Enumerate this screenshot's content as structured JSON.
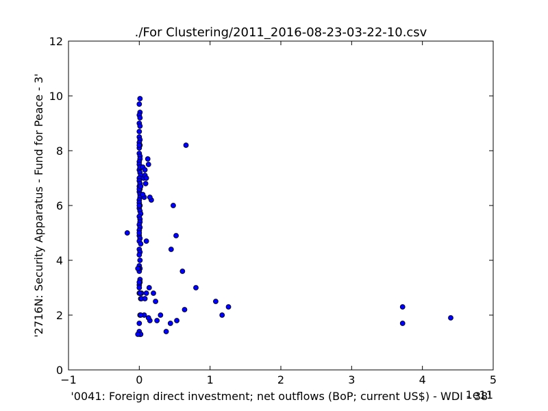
{
  "chart_data": {
    "type": "scatter",
    "title": "./For Clustering/2011_2016-08-23-03-22-10.csv",
    "xlabel": "'0041: Foreign direct investment; net outflows  (BoP; current US$) - WDI - 38'",
    "ylabel": "'2716N: Security Apparatus - Fund for Peace - 3'",
    "x_offset_label": "1e11",
    "xlim": [
      -1,
      5
    ],
    "ylim": [
      0,
      12
    ],
    "xticks": [
      -1,
      0,
      1,
      2,
      3,
      4,
      5
    ],
    "xtick_labels": [
      "−1",
      "0",
      "1",
      "2",
      "3",
      "4",
      "5"
    ],
    "yticks": [
      0,
      2,
      4,
      6,
      8,
      10,
      12
    ],
    "ytick_labels": [
      "0",
      "2",
      "4",
      "6",
      "8",
      "10",
      "12"
    ],
    "grid": false,
    "marker_color": "#0000ff",
    "marker_edge_color": "#000000",
    "series": [
      {
        "x": [
          0.01,
          0.0,
          0.01,
          0.0,
          0.01,
          0.0,
          0.01,
          0.0,
          0.0,
          0.01,
          0.0,
          0.01,
          0.0,
          0.0,
          0.01,
          0.01,
          0.0,
          0.0,
          0.01,
          0.0,
          0.01,
          0.02,
          0.0,
          0.0,
          0.01,
          0.0,
          0.01,
          0.0,
          0.01,
          0.01,
          0.0,
          0.0,
          0.01,
          0.0,
          0.01,
          0.02,
          0.0,
          0.01,
          0.01,
          0.0,
          0.01,
          0.0,
          0.0,
          0.01,
          0.0,
          0.02,
          0.0,
          0.01,
          0.0,
          0.01,
          0.0,
          0.01,
          0.0,
          0.01,
          0.01,
          0.0,
          0.0,
          0.02,
          0.01,
          0.0,
          0.01,
          0.0,
          0.0,
          0.01,
          0.02,
          -0.02,
          0.0,
          0.01,
          -0.01,
          0.0,
          0.01,
          0.02,
          0.0,
          0.0,
          0.03,
          0.05,
          0.08,
          0.12,
          0.13,
          0.06,
          0.08,
          0.1,
          0.09,
          0.07,
          0.05,
          0.17,
          0.15,
          0.1,
          -0.17,
          0.48,
          0.52,
          0.45,
          0.61,
          0.66,
          0.14,
          0.2,
          0.1,
          0.03,
          0.08,
          0.23,
          0.64,
          1.08,
          1.26,
          1.17,
          0.8,
          0.15,
          0.13,
          0.3,
          0.25,
          0.53,
          0.44,
          0.38,
          0.07,
          0.02,
          0.0,
          -0.02,
          0.01,
          3.72,
          3.72,
          4.4
        ],
        "y": [
          9.9,
          9.7,
          9.4,
          9.3,
          9.2,
          9.0,
          8.9,
          8.7,
          8.5,
          8.4,
          8.3,
          8.2,
          8.1,
          7.9,
          7.8,
          7.7,
          7.6,
          7.5,
          7.4,
          7.3,
          7.2,
          7.1,
          7.0,
          6.9,
          6.8,
          6.7,
          6.6,
          6.5,
          6.4,
          6.3,
          6.2,
          6.1,
          6.0,
          5.9,
          5.8,
          5.7,
          5.6,
          5.5,
          5.4,
          5.3,
          5.2,
          5.1,
          4.9,
          4.8,
          4.7,
          4.6,
          4.4,
          4.3,
          4.2,
          4.0,
          3.8,
          3.7,
          3.6,
          3.3,
          3.2,
          3.1,
          3.0,
          2.6,
          2.8,
          2.8,
          2.0,
          1.7,
          1.4,
          1.3,
          1.3,
          1.3,
          8.2,
          7.4,
          3.7,
          6.6,
          6.8,
          6.7,
          5.0,
          6.0,
          2.8,
          7.4,
          7.3,
          7.7,
          7.5,
          7.0,
          7.1,
          7.0,
          6.8,
          6.3,
          6.4,
          6.2,
          6.3,
          4.7,
          5.0,
          6.0,
          4.9,
          4.4,
          3.6,
          8.2,
          3.0,
          2.8,
          2.8,
          2.6,
          2.6,
          2.5,
          2.2,
          2.5,
          2.3,
          2.0,
          3.0,
          1.8,
          1.9,
          2.0,
          1.8,
          1.8,
          1.7,
          1.4,
          2.0,
          2.0,
          3.2,
          3.7,
          2.8,
          2.3,
          1.7,
          1.9
        ]
      }
    ]
  }
}
